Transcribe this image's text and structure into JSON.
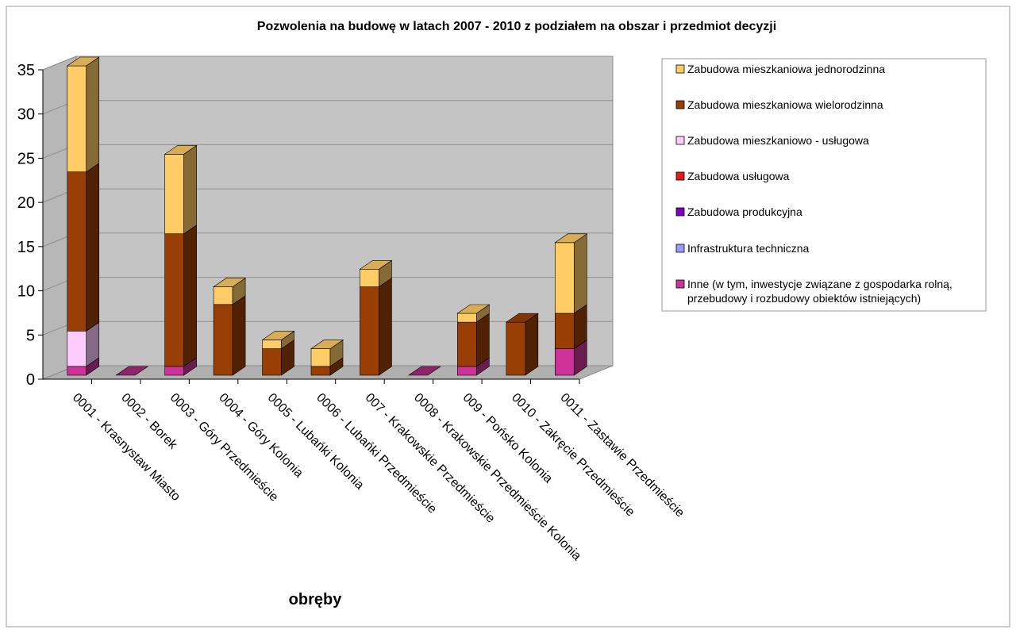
{
  "chart_data": {
    "type": "bar",
    "stacked": true,
    "three_d": true,
    "title": "Pozwolenia na budowę w latach 2007 - 2010 z podziałem na obszar i przedmiot decyzji",
    "xlabel": "obręby",
    "ylabel": "",
    "ylim": [
      0,
      35
    ],
    "yticks": [
      0,
      5,
      10,
      15,
      20,
      25,
      30,
      35
    ],
    "grid": true,
    "legend_position": "right",
    "categories": [
      "0001 - Krasnystaw Miasto",
      "0002 - Borek",
      "0003 - Góry Przedmieście",
      "0004 - Góry Kolonia",
      "0005 - Lubańki Kolonia",
      "0006 - Lubańki Przedmieście",
      "007 - Krakowskie Przedmieście",
      "0008 - Krakowskie Przedmieście Kolonia",
      "009 - Pońsko Kolonia",
      "0010 - Zakręcie Przedmieście",
      "0011 - Zastawie Przedmieście"
    ],
    "series": [
      {
        "name": "Inne (w tym, inwestycje związane z gospodarka rolną, przebudowy i rozbudowy obiektów istniejących)",
        "color": "#cc3399",
        "values": [
          1,
          0,
          1,
          0,
          0,
          0,
          0,
          0,
          1,
          0,
          3
        ]
      },
      {
        "name": "Infrastruktura techniczna",
        "color": "#9999ff",
        "values": [
          0,
          0,
          0,
          0,
          0,
          0,
          0,
          0,
          0,
          0,
          0
        ]
      },
      {
        "name": "Zabudowa produkcyjna",
        "color": "#7f00bf",
        "values": [
          0,
          0,
          0,
          0,
          0,
          0,
          0,
          0,
          0,
          0,
          0
        ]
      },
      {
        "name": "Zabudowa usługowa",
        "color": "#e31a1c",
        "values": [
          0,
          0,
          0,
          0,
          0,
          0,
          0,
          0,
          0,
          0,
          0
        ]
      },
      {
        "name": "Zabudowa mieszkaniowo - usługowa",
        "color": "#ffccff",
        "values": [
          4,
          0,
          0,
          0,
          0,
          0,
          0,
          0,
          0,
          0,
          0
        ]
      },
      {
        "name": "Zabudowa mieszkaniowa wielorodzinna",
        "color": "#993f06",
        "values": [
          18,
          0,
          15,
          8,
          3,
          1,
          10,
          0,
          5,
          6,
          4
        ]
      },
      {
        "name": "Zabudowa mieszkaniowa jednorodzinna",
        "color": "#ffcc66",
        "values": [
          12,
          0,
          9,
          2,
          1,
          2,
          2,
          0,
          1,
          0,
          8
        ]
      }
    ],
    "legend_order": [
      6,
      5,
      4,
      3,
      2,
      1,
      0
    ]
  }
}
